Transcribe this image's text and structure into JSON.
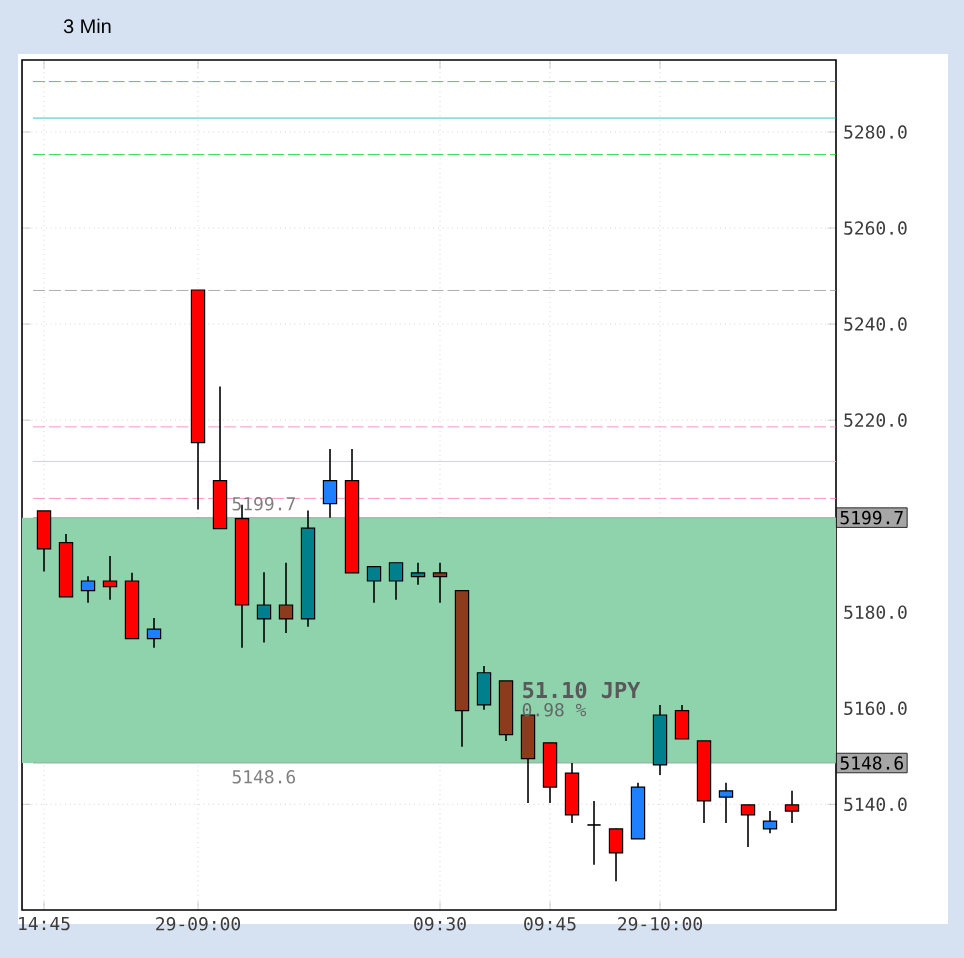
{
  "chart_data": {
    "type": "candlestick",
    "title": "3 Min",
    "categories": [
      "14:45",
      null,
      null,
      null,
      null,
      null,
      null,
      "29-09:00",
      null,
      null,
      null,
      null,
      null,
      null,
      null,
      null,
      null,
      null,
      "09:30",
      null,
      null,
      null,
      null,
      "09:45",
      null,
      null,
      null,
      null,
      "29-10:00",
      null,
      null,
      null,
      null,
      null,
      null
    ],
    "ohlc": [
      [
        5201.1,
        5201.1,
        5188.5,
        5193.2
      ],
      [
        5194.5,
        5196.3,
        5183.2,
        5183.2
      ],
      [
        5184.5,
        5187.5,
        5182,
        5186.5
      ],
      [
        5186.5,
        5191.7,
        5182.6,
        5185.3
      ],
      [
        5186.5,
        5188.2,
        5174.5,
        5174.5
      ],
      [
        5174.5,
        5178.8,
        5172.6,
        5176.5
      ],
      null,
      [
        5247.1,
        5247.1,
        5201.4,
        5215.3
      ],
      [
        5207.4,
        5227,
        5197.4,
        5197.4
      ],
      [
        5199.5,
        5202.4,
        5172.6,
        5181.5
      ],
      [
        5178.6,
        5188.3,
        5173.7,
        5181.5
      ],
      [
        5181.5,
        5190.3,
        5175.7,
        5178.6
      ],
      [
        5178.6,
        5201.2,
        5177,
        5197.5
      ],
      [
        5202.6,
        5214,
        5199.7,
        5207.4
      ],
      [
        5207.4,
        5214,
        5188.2,
        5188.2
      ],
      [
        5186.5,
        5189.5,
        5182,
        5189.5
      ],
      [
        5186.5,
        5190.3,
        5182.6,
        5190.3
      ],
      [
        5187.4,
        5190.3,
        5185.7,
        5188.2
      ],
      [
        5188.2,
        5190.3,
        5182,
        5187.4
      ],
      [
        5184.5,
        5184.5,
        5152,
        5159.5
      ],
      [
        5160.7,
        5168.8,
        5159.7,
        5167.4
      ],
      [
        5165.7,
        5165.7,
        5153.2,
        5154.5
      ],
      [
        5158.6,
        5158.6,
        5140.3,
        5149.5
      ],
      [
        5152.8,
        5152.8,
        5140.3,
        5143.6
      ],
      [
        5146.5,
        5148.6,
        5136.1,
        5137.8
      ],
      [
        5135.7,
        5140.7,
        5127.4,
        5135.7
      ],
      [
        5134.9,
        5134.9,
        5124,
        5129.9
      ],
      [
        5132.8,
        5144.5,
        5132.8,
        5143.6
      ],
      [
        5148.2,
        5160.7,
        5146.1,
        5158.6
      ],
      [
        5159.5,
        5160.7,
        5153.6,
        5153.6
      ],
      [
        5153.2,
        5153.2,
        5136.1,
        5140.7
      ],
      [
        5141.5,
        5144.5,
        5136.1,
        5142.8
      ],
      [
        5139.9,
        5139.9,
        5131.1,
        5137.8
      ],
      [
        5134.9,
        5138.6,
        5134,
        5136.5
      ],
      [
        5139.9,
        5142.8,
        5136.1,
        5138.6
      ]
    ],
    "colors": [
      "#ff0000",
      "#ff0000",
      "#1e7fff",
      "#ff0000",
      "#ff0000",
      "#1e7fff",
      null,
      "#ff0000",
      "#ff0000",
      "#ff0000",
      "#007f8c",
      "#8c3c1c",
      "#007f8c",
      "#1e7fff",
      "#ff0000",
      "#007f8c",
      "#007f8c",
      "#007f8c",
      "#8c3c1c",
      "#8c3c1c",
      "#007f8c",
      "#8c3c1c",
      "#8c3c1c",
      "#ff0000",
      "#ff0000",
      "#000000",
      "#ff0000",
      "#1e7fff",
      "#007f8c",
      "#ff0000",
      "#ff0000",
      "#1e7fff",
      "#ff0000",
      "#1e7fff",
      "#ff0000"
    ],
    "ylim": [
      5118,
      5295
    ],
    "yticks": [
      {
        "value": 5140,
        "label": "5140.0"
      },
      {
        "value": 5160,
        "label": "5160.0"
      },
      {
        "value": 5180,
        "label": "5180.0"
      },
      {
        "value": 5220,
        "label": "5220.0"
      },
      {
        "value": 5240,
        "label": "5240.0"
      },
      {
        "value": 5260,
        "label": "5260.0"
      },
      {
        "value": 5280,
        "label": "5280.0"
      }
    ],
    "grid": true,
    "ref_lines": [
      {
        "axis": "y",
        "value": 5290.5,
        "color": "#00d030",
        "line_style": "dashed"
      },
      {
        "axis": "y",
        "value": 5282.9,
        "color": "#00b8b8",
        "line_style": "solid"
      },
      {
        "axis": "y",
        "value": 5275.3,
        "color": "#00d030",
        "line_style": "dashed"
      },
      {
        "axis": "y",
        "value": 5247,
        "color": "#999999",
        "line_style": "dashed"
      },
      {
        "axis": "y",
        "value": 5218.6,
        "color": "#ff77bb",
        "line_style": "dashed"
      },
      {
        "axis": "y",
        "value": 5211.4,
        "color": "#ffaad4",
        "line_style": "solid"
      },
      {
        "axis": "y",
        "value": 5203.7,
        "color": "#ff77bb",
        "line_style": "dashed"
      },
      {
        "axis": "y",
        "value": 5199.7,
        "label": "5199.7",
        "color": "#999999",
        "line_style": "solid"
      },
      {
        "axis": "y",
        "value": 5148.6,
        "label": "5148.6",
        "color": "#999999",
        "line_style": "solid"
      }
    ],
    "bands": [
      {
        "axis": "y",
        "from": 5148.6,
        "to": 5199.7,
        "label": "51.10 JPY",
        "color": "#8fd3ad"
      }
    ],
    "annotations": [
      {
        "text": "5199.7",
        "y": 5199.7
      },
      {
        "text": "5148.6",
        "y": 5148.6
      },
      "0.98 %"
    ]
  }
}
